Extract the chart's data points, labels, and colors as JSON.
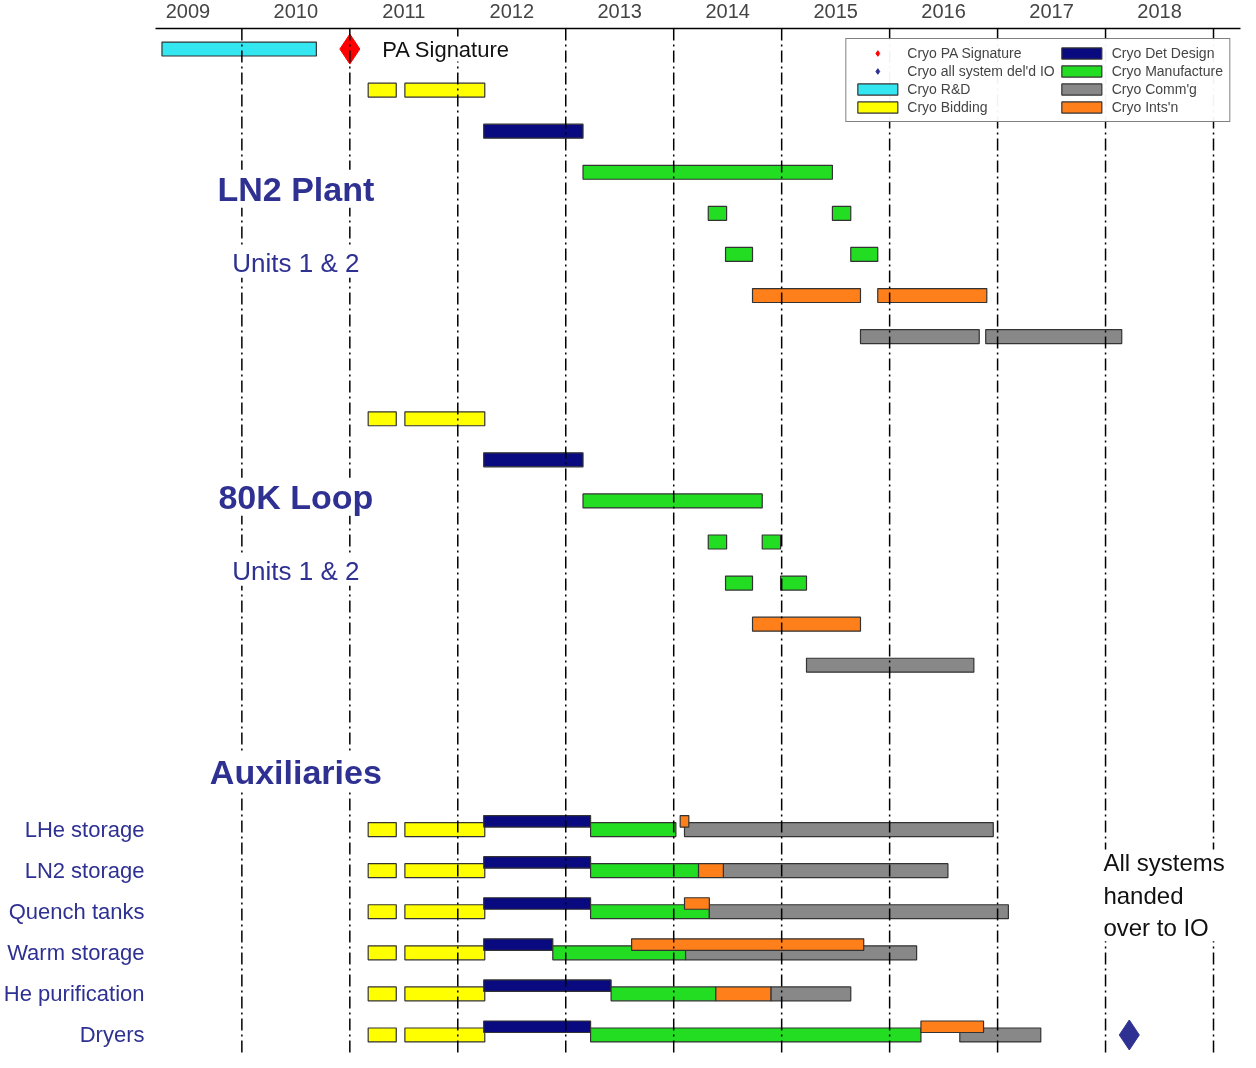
{
  "chart_data": {
    "type": "bar",
    "orientation": "horizontal",
    "categories": [
      null,
      null,
      null,
      null,
      null,
      null,
      null,
      null,
      null,
      null,
      null,
      null,
      null,
      null,
      null,
      null,
      null,
      null,
      null,
      "LHe storage",
      "LN2 storage",
      "Quench tanks",
      "Warm storage",
      "He purification",
      "Dryers"
    ],
    "xlim": [
      2009.2,
      2019.25
    ],
    "xticks": [
      {
        "value": 2009.5,
        "label": "2009"
      },
      {
        "value": 2010.5,
        "label": "2010"
      },
      {
        "value": 2011.5,
        "label": "2011"
      },
      {
        "value": 2012.5,
        "label": "2012"
      },
      {
        "value": 2013.5,
        "label": "2013"
      },
      {
        "value": 2014.5,
        "label": "2014"
      },
      {
        "value": 2015.5,
        "label": "2015"
      },
      {
        "value": 2016.5,
        "label": "2016"
      },
      {
        "value": 2017.5,
        "label": "2017"
      },
      {
        "value": 2018.5,
        "label": "2018"
      }
    ],
    "ref_lines": [
      {
        "axis": "x",
        "value": 2010,
        "line_style": "dashed",
        "color": "#000000"
      },
      {
        "axis": "x",
        "value": 2011,
        "line_style": "dashed",
        "color": "#000000"
      },
      {
        "axis": "x",
        "value": 2012,
        "line_style": "dashed",
        "color": "#000000"
      },
      {
        "axis": "x",
        "value": 2013,
        "line_style": "dashed",
        "color": "#000000"
      },
      {
        "axis": "x",
        "value": 2014,
        "line_style": "dashed",
        "color": "#000000"
      },
      {
        "axis": "x",
        "value": 2015,
        "line_style": "dashed",
        "color": "#000000"
      },
      {
        "axis": "x",
        "value": 2016,
        "line_style": "dashed",
        "color": "#000000"
      },
      {
        "axis": "x",
        "value": 2017,
        "line_style": "dashed",
        "color": "#000000"
      },
      {
        "axis": "x",
        "value": 2018,
        "line_style": "dashed",
        "color": "#000000"
      },
      {
        "axis": "x",
        "value": 2019,
        "line_style": "dashed",
        "color": "#000000"
      }
    ],
    "annotations": [
      "PA Signature",
      "LN2 Plant",
      "Units 1 & 2",
      "80K Loop",
      "Units 1 & 2",
      "Auxiliaries",
      "All systems\nhanded\nover to IO"
    ],
    "legend": "top right",
    "grid": false,
    "series": [
      {
        "name": "Cryo PA Signature",
        "type": "scatter",
        "marker": "diamond",
        "color": "#ff0000",
        "values": [
          2011.0,
          null,
          null,
          null,
          null,
          null,
          null,
          null,
          null,
          null,
          null,
          null,
          null,
          null,
          null,
          null,
          null,
          null,
          null,
          null,
          null,
          null,
          null,
          null,
          null
        ]
      },
      {
        "name": "Cryo all system del'd IO",
        "type": "scatter",
        "marker": "diamond",
        "color": "#2e3192",
        "values": [
          null,
          null,
          null,
          null,
          null,
          null,
          null,
          null,
          null,
          null,
          null,
          null,
          null,
          null,
          null,
          null,
          null,
          null,
          null,
          null,
          null,
          null,
          null,
          null,
          2018.22
        ]
      },
      {
        "name": "Cryo R&D",
        "color": "#33e6f0",
        "values": [
          1.43,
          null,
          null,
          null,
          null,
          null,
          null,
          null,
          null,
          null,
          null,
          null,
          null,
          null,
          null,
          null,
          null,
          null,
          null,
          null,
          null,
          null,
          null,
          null,
          null
        ],
        "base": [
          2009.26,
          null,
          null,
          null,
          null,
          null,
          null,
          null,
          null,
          null,
          null,
          null,
          null,
          null,
          null,
          null,
          null,
          null,
          null,
          null,
          null,
          null,
          null,
          null,
          null
        ]
      },
      {
        "name": "Cryo Bidding",
        "color": "#ffff00",
        "values": [
          null,
          0.26,
          null,
          null,
          null,
          null,
          null,
          null,
          null,
          0.26,
          null,
          null,
          null,
          null,
          null,
          null,
          null,
          null,
          null,
          0.26,
          0.26,
          0.26,
          0.26,
          0.26,
          0.26
        ],
        "base": [
          null,
          2011.17,
          null,
          null,
          null,
          null,
          null,
          null,
          null,
          2011.17,
          null,
          null,
          null,
          null,
          null,
          null,
          null,
          null,
          null,
          2011.17,
          2011.17,
          2011.17,
          2011.17,
          2011.17,
          2011.17
        ]
      },
      {
        "color": "#ffff00",
        "values": [
          null,
          0.74,
          null,
          null,
          null,
          null,
          null,
          null,
          null,
          0.74,
          null,
          null,
          null,
          null,
          null,
          null,
          null,
          null,
          null,
          0.74,
          0.74,
          0.74,
          0.74,
          0.74,
          0.74
        ],
        "base": [
          null,
          2011.51,
          null,
          null,
          null,
          null,
          null,
          null,
          null,
          2011.51,
          null,
          null,
          null,
          null,
          null,
          null,
          null,
          null,
          null,
          2011.51,
          2011.51,
          2011.51,
          2011.51,
          2011.51,
          2011.51
        ]
      },
      {
        "name": "Cryo Det Design",
        "color": "#0a0a80",
        "values": [
          null,
          null,
          0.92,
          null,
          null,
          null,
          null,
          null,
          null,
          null,
          0.92,
          null,
          null,
          null,
          null,
          null,
          null,
          null,
          null,
          0.99,
          0.99,
          0.99,
          0.64,
          1.18,
          0.99
        ],
        "base": [
          null,
          null,
          2012.24,
          null,
          null,
          null,
          null,
          null,
          null,
          null,
          2012.24,
          null,
          null,
          null,
          null,
          null,
          null,
          null,
          null,
          2012.24,
          2012.24,
          2012.24,
          2012.24,
          2012.24,
          2012.24
        ]
      },
      {
        "name": "Cryo Manufacture",
        "color": "#22dd22",
        "values": [
          null,
          null,
          null,
          2.31,
          0.17,
          0.25,
          null,
          null,
          null,
          null,
          null,
          1.66,
          0.17,
          0.25,
          null,
          null,
          null,
          null,
          null,
          0.79,
          1.0,
          1.1,
          1.23,
          0.97,
          3.06
        ],
        "base": [
          null,
          null,
          null,
          2013.16,
          2014.32,
          2014.48,
          null,
          null,
          null,
          null,
          null,
          2013.16,
          2014.32,
          2014.48,
          null,
          null,
          null,
          null,
          null,
          2013.23,
          2013.23,
          2013.23,
          2012.88,
          2013.42,
          2013.23
        ]
      },
      {
        "color": "#22dd22",
        "values": [
          null,
          null,
          null,
          null,
          0.17,
          0.25,
          null,
          null,
          null,
          null,
          null,
          null,
          0.17,
          0.24,
          null,
          null,
          null,
          null,
          null,
          null,
          null,
          null,
          null,
          null,
          null
        ],
        "base": [
          null,
          null,
          null,
          null,
          2015.47,
          2015.64,
          null,
          null,
          null,
          null,
          null,
          null,
          2014.82,
          2014.99,
          null,
          null,
          null,
          null,
          null,
          null,
          null,
          null,
          null,
          null,
          null
        ]
      },
      {
        "name": "Cryo Comm'g",
        "color": "#888888",
        "values": [
          null,
          null,
          null,
          null,
          null,
          null,
          null,
          1.1,
          null,
          null,
          null,
          null,
          null,
          null,
          null,
          1.55,
          null,
          null,
          null,
          2.86,
          2.08,
          2.77,
          2.14,
          0.74,
          0.75
        ],
        "base": [
          null,
          null,
          null,
          null,
          null,
          null,
          null,
          2015.73,
          null,
          null,
          null,
          null,
          null,
          null,
          null,
          2015.23,
          null,
          null,
          null,
          2014.1,
          2014.46,
          2014.33,
          2014.11,
          2014.9,
          2016.65
        ]
      },
      {
        "color": "#888888",
        "values": [
          null,
          null,
          null,
          null,
          null,
          null,
          null,
          1.26,
          null,
          null,
          null,
          null,
          null,
          null,
          null,
          null,
          null,
          null,
          null,
          null,
          null,
          null,
          null,
          null,
          null
        ],
        "base": [
          null,
          null,
          null,
          null,
          null,
          null,
          null,
          2016.89,
          null,
          null,
          null,
          null,
          null,
          null,
          null,
          null,
          null,
          null,
          null,
          null,
          null,
          null,
          null,
          null,
          null
        ]
      },
      {
        "name": "Cryo Ints'n",
        "color": "#ff7f1a",
        "values": [
          null,
          null,
          null,
          null,
          null,
          null,
          1.0,
          null,
          null,
          null,
          null,
          null,
          null,
          null,
          1.0,
          null,
          null,
          null,
          null,
          0.08,
          0.23,
          0.23,
          2.15,
          0.51,
          0.58
        ],
        "base": [
          null,
          null,
          null,
          null,
          null,
          null,
          2014.73,
          null,
          null,
          null,
          null,
          null,
          null,
          null,
          2014.73,
          null,
          null,
          null,
          null,
          2014.06,
          2014.23,
          2014.1,
          2013.61,
          2014.39,
          2016.29
        ]
      },
      {
        "color": "#ff7f1a",
        "values": [
          null,
          null,
          null,
          null,
          null,
          null,
          1.01,
          null,
          null,
          null,
          null,
          null,
          null,
          null,
          null,
          null,
          null,
          null,
          null,
          null,
          null,
          null,
          null,
          null,
          null
        ],
        "base": [
          null,
          null,
          null,
          null,
          null,
          null,
          2015.89,
          null,
          null,
          null,
          null,
          null,
          null,
          null,
          null,
          null,
          null,
          null,
          null,
          null,
          null,
          null,
          null,
          null,
          null
        ]
      }
    ]
  }
}
